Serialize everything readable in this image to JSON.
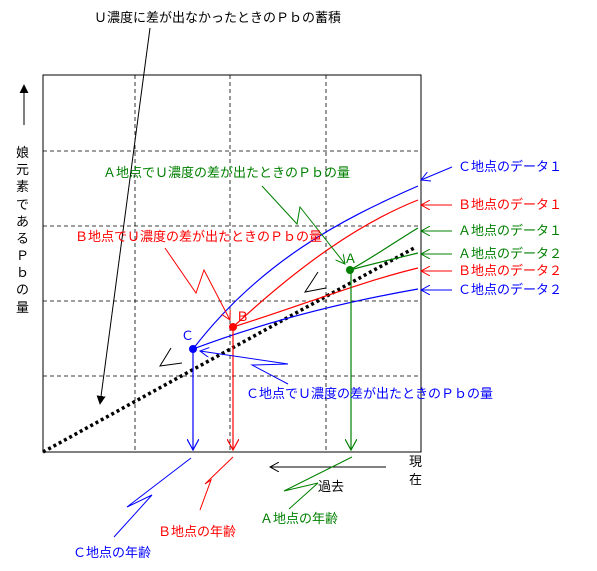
{
  "colors": {
    "black": "#000000",
    "red": "#ff0000",
    "green": "#008000",
    "blue": "#0000ff"
  },
  "labels": {
    "top": "Ｕ濃度に差が出なかったときのＰｂの蓄積",
    "y_axis_lines": [
      "娘",
      "元",
      "素",
      "で",
      "あ",
      "る",
      "Ｐ",
      "ｂ",
      "の",
      "量"
    ],
    "x_axis_now": [
      "現",
      "在"
    ],
    "x_axis_past": "過去",
    "green_mid": "Ａ地点でＵ濃度の差が出たときのＰｂの量",
    "red_mid": "Ｂ地点でＵ濃度の差が出たときのＰｂの量",
    "blue_mid": "Ｃ地点でＵ濃度の差が出たときのＰｂの量",
    "legend_c1": "Ｃ地点のデータ１",
    "legend_b1": "Ｂ地点のデータ１",
    "legend_a1": "Ａ地点のデータ１",
    "legend_a2": "Ａ地点のデータ２",
    "legend_b2": "Ｂ地点のデータ２",
    "legend_c2": "Ｃ地点のデータ２",
    "age_a": "Ａ地点の年齢",
    "age_b": "Ｂ地点の年齢",
    "age_c": "Ｃ地点の年齢",
    "point_a": "Ａ",
    "point_b": "Ｂ",
    "point_c": "Ｃ"
  }
}
